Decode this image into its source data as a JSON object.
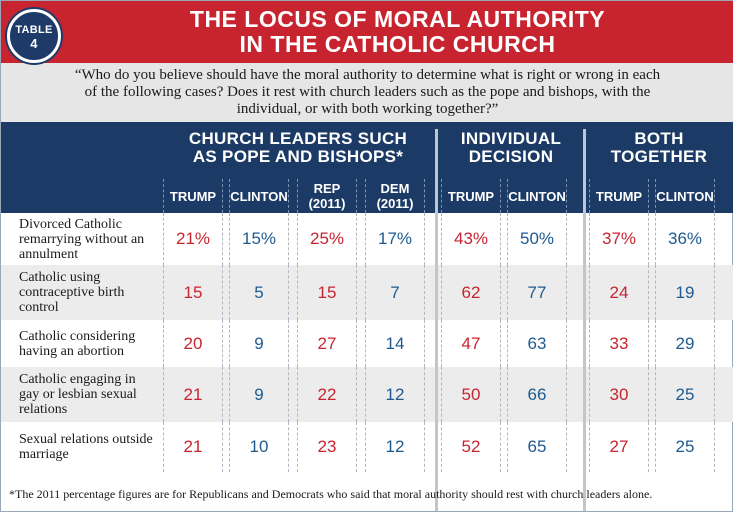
{
  "badge": {
    "label": "TABLE",
    "number": "4"
  },
  "title": {
    "line1": "THE LOCUS OF MORAL AUTHORITY",
    "line2": "IN THE CATHOLIC CHURCH"
  },
  "question": "“Who do you believe should have the moral authority to determine what is right or wrong in each of the following cases? Does it rest with church leaders such as the pope and bishops, with the individual, or with both working together?”",
  "groups": {
    "church": {
      "line1": "CHURCH LEADERS SUCH",
      "line2": "AS POPE AND BISHOPS*"
    },
    "individual": {
      "line1": "INDIVIDUAL",
      "line2": "DECISION"
    },
    "both": {
      "line1": "BOTH",
      "line2": "TOGETHER"
    }
  },
  "columns": [
    {
      "label": "TRUMP"
    },
    {
      "label": "CLINTON"
    },
    {
      "label": "REP\n(2011)"
    },
    {
      "label": "DEM\n(2011)"
    },
    {
      "label": "TRUMP"
    },
    {
      "label": "CLINTON"
    },
    {
      "label": "TRUMP"
    },
    {
      "label": "CLINTON"
    }
  ],
  "rows": [
    {
      "label": "Divorced Catholic remarrying without an annulment",
      "values": [
        "21%",
        "15%",
        "25%",
        "17%",
        "43%",
        "50%",
        "37%",
        "36%"
      ]
    },
    {
      "label": "Catholic using contraceptive birth control",
      "values": [
        "15",
        "5",
        "15",
        "7",
        "62",
        "77",
        "24",
        "19"
      ]
    },
    {
      "label": "Catholic considering having an abortion",
      "values": [
        "20",
        "9",
        "27",
        "14",
        "47",
        "63",
        "33",
        "29"
      ]
    },
    {
      "label": "Catholic engaging in gay or lesbian sexual relations",
      "values": [
        "21",
        "9",
        "22",
        "12",
        "50",
        "66",
        "30",
        "25"
      ]
    },
    {
      "label": "Sexual relations outside marriage",
      "values": [
        "21",
        "10",
        "23",
        "12",
        "52",
        "65",
        "27",
        "25"
      ]
    }
  ],
  "footnote": "*The 2011 percentage figures are for Republicans and Democrats who said that moral authority should rest with church leaders alone.",
  "colors": {
    "title_red": "#c8242f",
    "header_navy": "#1c3a66",
    "value_red": "#c8242f",
    "value_blue": "#1e5a8f"
  }
}
